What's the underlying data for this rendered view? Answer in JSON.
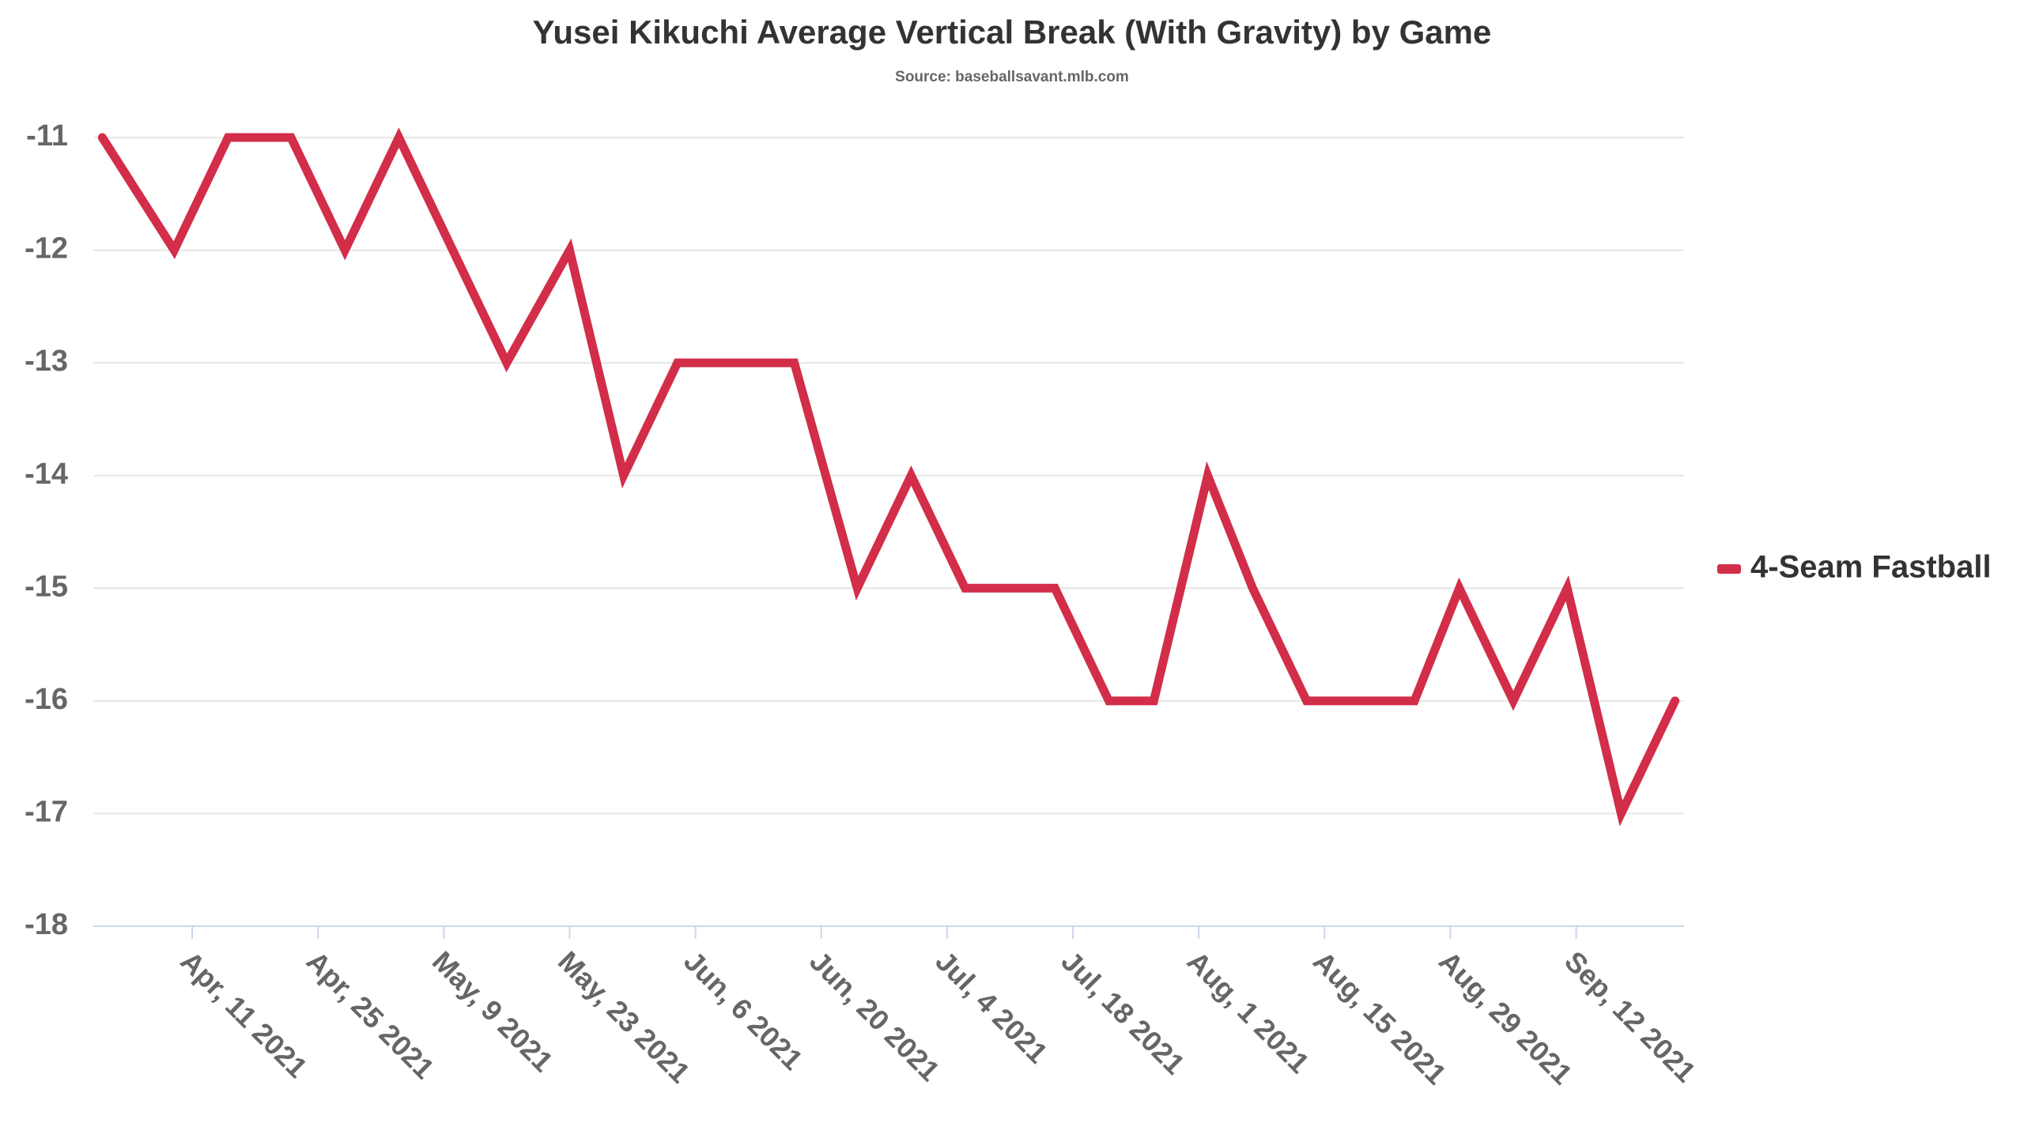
{
  "chart_data": {
    "type": "line",
    "title": "Yusei Kikuchi Average Vertical Break (With Gravity) by Game",
    "subtitle": "Source: baseballsavant.mlb.com",
    "x": [
      "2021-04-01",
      "2021-04-09",
      "2021-04-15",
      "2021-04-22",
      "2021-04-28",
      "2021-05-04",
      "2021-05-10",
      "2021-05-16",
      "2021-05-23",
      "2021-05-29",
      "2021-06-04",
      "2021-06-10",
      "2021-06-17",
      "2021-06-24",
      "2021-06-30",
      "2021-07-06",
      "2021-07-11",
      "2021-07-16",
      "2021-07-22",
      "2021-07-27",
      "2021-08-02",
      "2021-08-07",
      "2021-08-13",
      "2021-08-19",
      "2021-08-25",
      "2021-08-30",
      "2021-09-05",
      "2021-09-11",
      "2021-09-17",
      "2021-09-23"
    ],
    "series": [
      {
        "name": "4-Seam Fastball",
        "color": "#d22d49",
        "values": [
          -11,
          -12,
          -11,
          -11,
          -12,
          -11,
          -12,
          -13,
          -12,
          -14,
          -13,
          -13,
          -13,
          -15,
          -14,
          -15,
          -15,
          -15,
          -16,
          -16,
          -14,
          -15,
          -16,
          -16,
          -16,
          -15,
          -16,
          -15,
          -17,
          -16
        ]
      }
    ],
    "xlim": [
      "2021-03-31",
      "2021-09-24"
    ],
    "xticks": [
      {
        "value": "2021-04-11",
        "label": "Apr, 11 2021"
      },
      {
        "value": "2021-04-25",
        "label": "Apr, 25 2021"
      },
      {
        "value": "2021-05-09",
        "label": "May, 9 2021"
      },
      {
        "value": "2021-05-23",
        "label": "May, 23 2021"
      },
      {
        "value": "2021-06-06",
        "label": "Jun, 6 2021"
      },
      {
        "value": "2021-06-20",
        "label": "Jun, 20 2021"
      },
      {
        "value": "2021-07-04",
        "label": "Jul, 4 2021"
      },
      {
        "value": "2021-07-18",
        "label": "Jul, 18 2021"
      },
      {
        "value": "2021-08-01",
        "label": "Aug, 1 2021"
      },
      {
        "value": "2021-08-15",
        "label": "Aug, 15 2021"
      },
      {
        "value": "2021-08-29",
        "label": "Aug, 29 2021"
      },
      {
        "value": "2021-09-12",
        "label": "Sep, 12 2021"
      }
    ],
    "ylim": [
      -18,
      -10.8
    ],
    "yticks": [
      -18,
      -17,
      -16,
      -15,
      -14,
      -13,
      -12,
      -11
    ],
    "grid": true,
    "legend": "right"
  }
}
